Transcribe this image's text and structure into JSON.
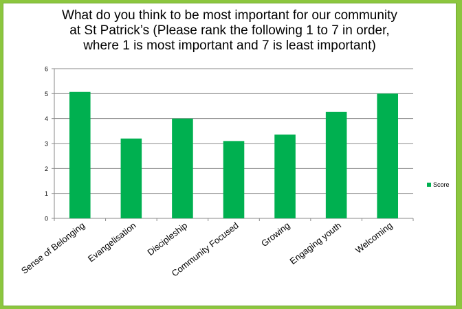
{
  "chart_data": {
    "type": "bar",
    "title_lines": [
      "What do you think to be most important for our community",
      "at St Patrick’s (Please rank the following 1 to 7 in order,",
      "where 1 is most important and 7 is least important)"
    ],
    "categories": [
      "Sense of Belonging",
      "Evangelisation",
      "Discipleship",
      "Community Focused",
      "Growing",
      "Engaging youth",
      "Welcoming"
    ],
    "series": [
      {
        "name": "Score",
        "values": [
          5.07,
          3.2,
          4.0,
          3.1,
          3.36,
          4.27,
          5.0
        ]
      }
    ],
    "ylim": [
      0,
      6
    ],
    "yticks": [
      "0",
      "1",
      "2",
      "3",
      "4",
      "5",
      "6"
    ],
    "grid": true,
    "legend": "right",
    "colors": {
      "bar": "#00b050",
      "border": "#8cc63f"
    }
  }
}
